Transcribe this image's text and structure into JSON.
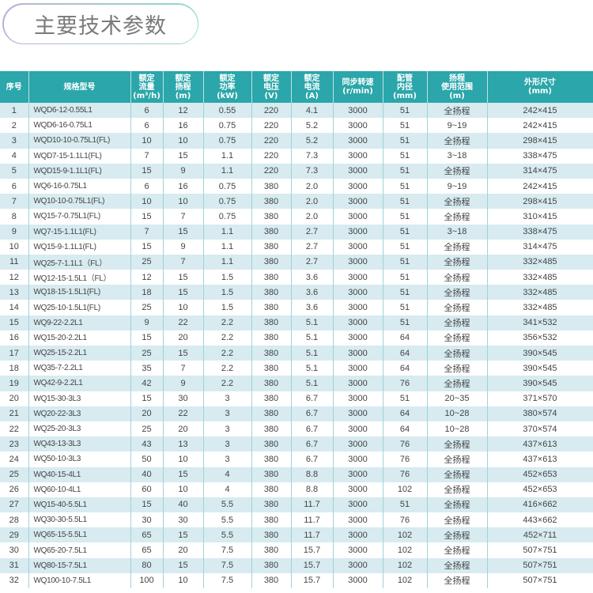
{
  "title": "主要技术参数",
  "colors": {
    "header_bg": "#2ba6aa",
    "row_alt": "#d7ebf0"
  },
  "headers": [
    "序号",
    "规格型号",
    "额定\n流量\n(m³/h)",
    "额定\n扬程\n(m)",
    "额定\n功率\n(kW)",
    "额定\n电压\n(V)",
    "额定\n电流\n(A)",
    "同步转速\n(r/min)",
    "配管\n内径\n(mm)",
    "扬程\n使用范围\n(m)",
    "外形尺寸\n(mm)"
  ],
  "rows": [
    [
      "1",
      "WQD6-12-0.55L1",
      "6",
      "12",
      "0.55",
      "220",
      "4.1",
      "3000",
      "51",
      "全扬程",
      "242×415"
    ],
    [
      "2",
      "WQD6-16-0.75L1",
      "6",
      "16",
      "0.75",
      "220",
      "5.2",
      "3000",
      "51",
      "9~19",
      "242×415"
    ],
    [
      "3",
      "WQD10-10-0.75L1(FL)",
      "10",
      "10",
      "0.75",
      "220",
      "5.2",
      "3000",
      "51",
      "全扬程",
      "298×415"
    ],
    [
      "4",
      "WQD7-15-1.1L1(FL)",
      "7",
      "15",
      "1.1",
      "220",
      "7.3",
      "3000",
      "51",
      "3~18",
      "338×475"
    ],
    [
      "5",
      "WQD15-9-1.1L1(FL)",
      "15",
      "9",
      "1.1",
      "220",
      "7.3",
      "3000",
      "51",
      "全扬程",
      "314×475"
    ],
    [
      "6",
      "WQ6-16-0.75L1",
      "6",
      "16",
      "0.75",
      "380",
      "2.0",
      "3000",
      "51",
      "9~19",
      "242×415"
    ],
    [
      "7",
      "WQ10-10-0.75L1(FL)",
      "10",
      "10",
      "0.75",
      "380",
      "2.0",
      "3000",
      "51",
      "全扬程",
      "298×415"
    ],
    [
      "8",
      "WQ15-7-0.75L1(FL)",
      "15",
      "7",
      "0.75",
      "380",
      "2.0",
      "3000",
      "51",
      "全扬程",
      "310×415"
    ],
    [
      "9",
      "WQ7-15-1.1L1(FL)",
      "7",
      "15",
      "1.1",
      "380",
      "2.7",
      "3000",
      "51",
      "3~18",
      "338×475"
    ],
    [
      "10",
      "WQ15-9-1.1L1(FL)",
      "15",
      "9",
      "1.1",
      "380",
      "2.7",
      "3000",
      "51",
      "全扬程",
      "314×475"
    ],
    [
      "11",
      "WQ25-7-1.1L1（FL）",
      "25",
      "7",
      "1.1",
      "380",
      "2.7",
      "3000",
      "51",
      "全扬程",
      "332×485"
    ],
    [
      "12",
      "WQ12-15-1.5L1（FL）",
      "12",
      "15",
      "1.5",
      "380",
      "3.6",
      "3000",
      "51",
      "全扬程",
      "332×485"
    ],
    [
      "13",
      "WQ18-15-1.5L1(FL)",
      "18",
      "15",
      "1.5",
      "380",
      "3.6",
      "3000",
      "51",
      "全扬程",
      "332×485"
    ],
    [
      "14",
      "WQ25-10-1.5L1(FL)",
      "25",
      "10",
      "1.5",
      "380",
      "3.6",
      "3000",
      "51",
      "全扬程",
      "332×485"
    ],
    [
      "15",
      "WQ9-22-2.2L1",
      "9",
      "22",
      "2.2",
      "380",
      "5.1",
      "3000",
      "51",
      "全扬程",
      "341×532"
    ],
    [
      "16",
      "WQ15-20-2.2L1",
      "15",
      "20",
      "2.2",
      "380",
      "5.1",
      "3000",
      "64",
      "全扬程",
      "356×532"
    ],
    [
      "17",
      "WQ25-15-2.2L1",
      "25",
      "15",
      "2.2",
      "380",
      "5.1",
      "3000",
      "64",
      "全扬程",
      "390×545"
    ],
    [
      "18",
      "WQ35-7-2.2L1",
      "35",
      "7",
      "2.2",
      "380",
      "5.1",
      "3000",
      "64",
      "全扬程",
      "390×545"
    ],
    [
      "19",
      "WQ42-9-2.2L1",
      "42",
      "9",
      "2.2",
      "380",
      "5.1",
      "3000",
      "76",
      "全扬程",
      "390×545"
    ],
    [
      "20",
      "WQ15-30-3L3",
      "15",
      "30",
      "3",
      "380",
      "6.7",
      "3000",
      "51",
      "20~35",
      "371×570"
    ],
    [
      "21",
      "WQ20-22-3L3",
      "20",
      "22",
      "3",
      "380",
      "6.7",
      "3000",
      "64",
      "10~28",
      "380×574"
    ],
    [
      "22",
      "WQ25-20-3L3",
      "25",
      "20",
      "3",
      "380",
      "6.7",
      "3000",
      "64",
      "10~28",
      "370×574"
    ],
    [
      "23",
      "WQ43-13-3L3",
      "43",
      "13",
      "3",
      "380",
      "6.7",
      "3000",
      "76",
      "全扬程",
      "437×613"
    ],
    [
      "24",
      "WQ50-10-3L3",
      "50",
      "10",
      "3",
      "380",
      "6.7",
      "3000",
      "76",
      "全扬程",
      "437×613"
    ],
    [
      "25",
      "WQ40-15-4L1",
      "40",
      "15",
      "4",
      "380",
      "8.8",
      "3000",
      "76",
      "全扬程",
      "452×653"
    ],
    [
      "26",
      "WQ60-10-4L1",
      "60",
      "10",
      "4",
      "380",
      "8.8",
      "3000",
      "102",
      "全扬程",
      "452×653"
    ],
    [
      "27",
      "WQ15-40-5.5L1",
      "15",
      "40",
      "5.5",
      "380",
      "11.7",
      "3000",
      "51",
      "全扬程",
      "416×662"
    ],
    [
      "28",
      "WQ30-30-5.5L1",
      "30",
      "30",
      "5.5",
      "380",
      "11.7",
      "3000",
      "76",
      "全扬程",
      "443×662"
    ],
    [
      "29",
      "WQ65-15-5.5L1",
      "65",
      "15",
      "5.5",
      "380",
      "11.7",
      "3000",
      "102",
      "全扬程",
      "452×711"
    ],
    [
      "30",
      "WQ65-20-7.5L1",
      "65",
      "20",
      "7.5",
      "380",
      "15.7",
      "3000",
      "102",
      "全扬程",
      "507×751"
    ],
    [
      "31",
      "WQ80-15-7.5L1",
      "80",
      "15",
      "7.5",
      "380",
      "15.7",
      "3000",
      "102",
      "全扬程",
      "507×751"
    ],
    [
      "32",
      "WQ100-10-7.5L1",
      "100",
      "10",
      "7.5",
      "380",
      "15.7",
      "3000",
      "102",
      "全扬程",
      "507×751"
    ]
  ]
}
